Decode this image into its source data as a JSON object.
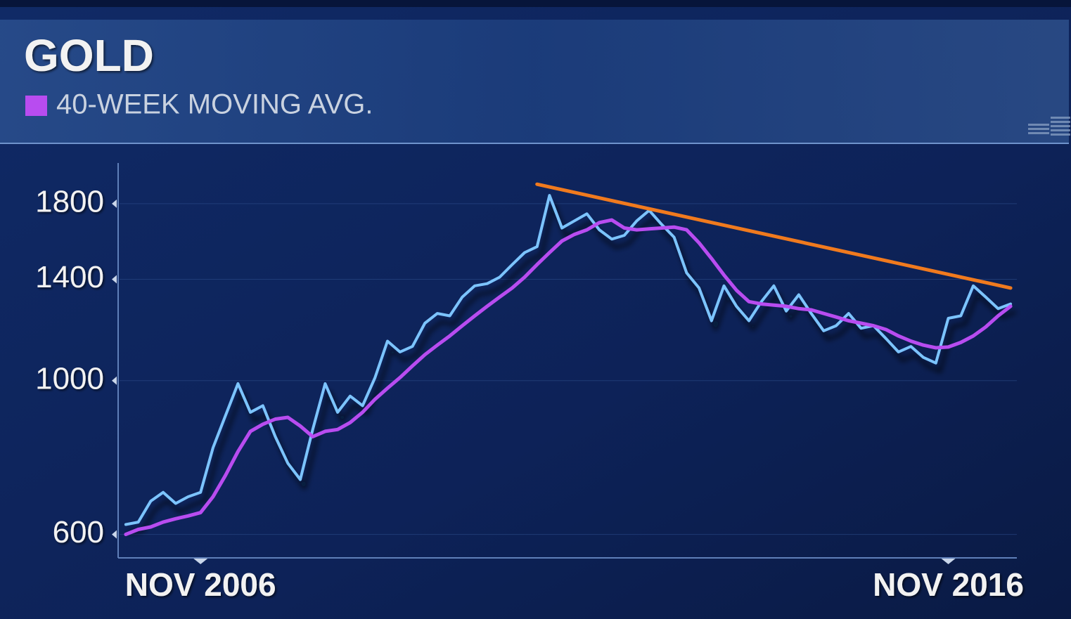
{
  "chart_data": {
    "type": "line",
    "title": "GOLD",
    "log_scale": true,
    "grid": true,
    "xlim": [
      "2005-10",
      "2017-10"
    ],
    "xticks": [
      {
        "value": "2006-11",
        "label": "NOV 2006"
      },
      {
        "value": "2016-11",
        "label": "NOV 2016"
      }
    ],
    "ylim": [
      555,
      2060
    ],
    "yticks": [
      600,
      1000,
      1400,
      1800
    ],
    "x": [
      "2005-11",
      "2006-01",
      "2006-03",
      "2006-05",
      "2006-07",
      "2006-09",
      "2006-11",
      "2007-01",
      "2007-03",
      "2007-05",
      "2007-07",
      "2007-09",
      "2007-11",
      "2008-01",
      "2008-03",
      "2008-05",
      "2008-07",
      "2008-09",
      "2008-11",
      "2009-01",
      "2009-03",
      "2009-05",
      "2009-07",
      "2009-09",
      "2009-11",
      "2010-01",
      "2010-03",
      "2010-05",
      "2010-07",
      "2010-09",
      "2010-11",
      "2011-01",
      "2011-03",
      "2011-05",
      "2011-07",
      "2011-09",
      "2011-11",
      "2012-01",
      "2012-03",
      "2012-05",
      "2012-07",
      "2012-09",
      "2012-11",
      "2013-01",
      "2013-03",
      "2013-05",
      "2013-07",
      "2013-09",
      "2013-11",
      "2014-01",
      "2014-03",
      "2014-05",
      "2014-07",
      "2014-09",
      "2014-11",
      "2015-01",
      "2015-03",
      "2015-05",
      "2015-07",
      "2015-09",
      "2015-11",
      "2016-01",
      "2016-03",
      "2016-05",
      "2016-07",
      "2016-09",
      "2016-11",
      "2017-01",
      "2017-03",
      "2017-05",
      "2017-07",
      "2017-09"
    ],
    "series": [
      {
        "color": "#7cc4ff",
        "values": [
          620,
          625,
          670,
          690,
          665,
          680,
          690,
          800,
          890,
          990,
          900,
          920,
          830,
          760,
          720,
          850,
          990,
          900,
          950,
          920,
          1010,
          1140,
          1100,
          1120,
          1210,
          1250,
          1240,
          1320,
          1370,
          1380,
          1410,
          1470,
          1530,
          1560,
          1850,
          1660,
          1700,
          1740,
          1650,
          1600,
          1620,
          1700,
          1760,
          1680,
          1610,
          1430,
          1360,
          1220,
          1370,
          1280,
          1220,
          1300,
          1370,
          1260,
          1330,
          1250,
          1180,
          1200,
          1250,
          1190,
          1200,
          1150,
          1100,
          1120,
          1080,
          1060,
          1230,
          1240,
          1370,
          1320,
          1270,
          1290
        ]
      },
      {
        "name": "40-WEEK MOVING AVG.",
        "color": "#b84cf0",
        "values": [
          600,
          610,
          615,
          625,
          632,
          638,
          645,
          680,
          730,
          790,
          845,
          865,
          880,
          885,
          860,
          830,
          845,
          850,
          870,
          900,
          940,
          975,
          1010,
          1050,
          1090,
          1125,
          1160,
          1200,
          1240,
          1280,
          1320,
          1360,
          1410,
          1470,
          1530,
          1590,
          1625,
          1650,
          1690,
          1705,
          1660,
          1650,
          1655,
          1660,
          1665,
          1650,
          1580,
          1500,
          1420,
          1350,
          1300,
          1290,
          1285,
          1280,
          1270,
          1265,
          1250,
          1235,
          1220,
          1210,
          1200,
          1185,
          1160,
          1140,
          1125,
          1115,
          1118,
          1135,
          1160,
          1195,
          1240,
          1280
        ]
      },
      {
        "color": "#f07a1e",
        "x": [
          "2011-05",
          "2017-09"
        ],
        "values": [
          1920,
          1360
        ]
      }
    ]
  }
}
